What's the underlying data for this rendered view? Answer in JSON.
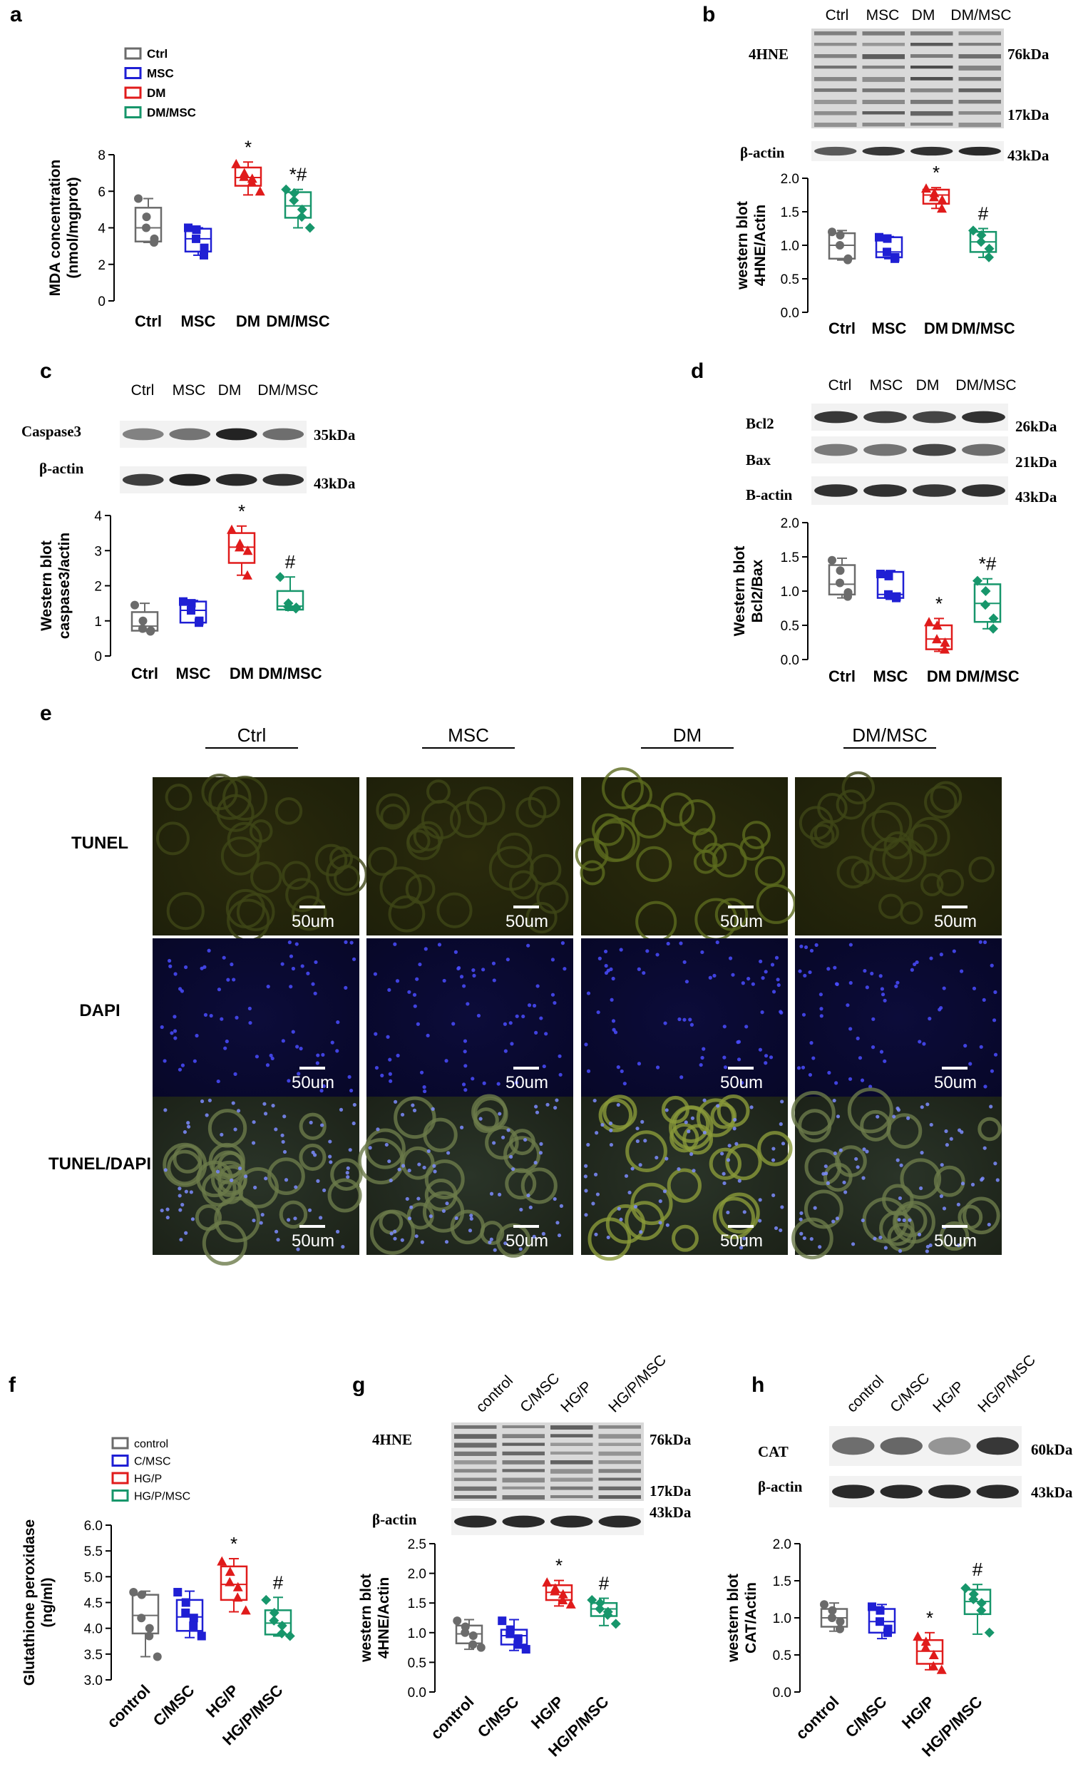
{
  "colors": {
    "ctrl": "#6b6b6b",
    "msc": "#1f1fd4",
    "dm": "#e01b1b",
    "dmmsc": "#17966b"
  },
  "chart_data": [
    {
      "id": "a",
      "panel_label": "a",
      "type": "box",
      "ylabel": [
        "MDA concentration",
        "(nmol/mgprot)"
      ],
      "ylim": [
        0,
        8
      ],
      "yticks": [
        "0",
        "2",
        "4",
        "6",
        "8"
      ],
      "categories": [
        "Ctrl",
        "MSC",
        "DM",
        "DM/MSC"
      ],
      "legend": [
        "Ctrl",
        "MSC",
        "DM",
        "DM/MSC"
      ],
      "series": [
        {
          "name": "Ctrl",
          "marker": "circle",
          "points": [
            5.6,
            4.6,
            4.0,
            3.4,
            3.2
          ],
          "box": [
            3.25,
            4.0,
            5.1
          ],
          "whisk": [
            3.2,
            5.6
          ]
        },
        {
          "name": "MSC",
          "marker": "square",
          "points": [
            4.0,
            3.9,
            3.4,
            2.9,
            2.5
          ],
          "box": [
            2.7,
            3.4,
            3.95
          ],
          "whisk": [
            2.5,
            4.0
          ]
        },
        {
          "name": "DM",
          "marker": "triangle",
          "points": [
            7.5,
            7.0,
            6.8,
            6.7,
            6.5,
            6.0
          ],
          "box": [
            6.3,
            6.75,
            7.3
          ],
          "whisk": [
            5.8,
            7.6
          ]
        },
        {
          "name": "DM/MSC",
          "marker": "diamond",
          "points": [
            6.1,
            5.9,
            5.5,
            5.0,
            4.6,
            4.0
          ],
          "box": [
            4.55,
            5.2,
            5.95
          ],
          "whisk": [
            4.0,
            6.1
          ]
        }
      ],
      "annotations": [
        "",
        "",
        "*",
        "*#"
      ]
    },
    {
      "id": "b",
      "panel_label": "b",
      "type": "box",
      "ylabel": [
        "western blot",
        "4HNE/Actin"
      ],
      "ylim": [
        0,
        2
      ],
      "yticks": [
        "0.0",
        "0.5",
        "1.0",
        "1.5",
        "2.0"
      ],
      "categories": [
        "Ctrl",
        "MSC",
        "DM",
        "DM/MSC"
      ],
      "series": [
        {
          "name": "Ctrl",
          "marker": "circle",
          "points": [
            1.2,
            1.15,
            1.0,
            0.8,
            0.78
          ],
          "box": [
            0.8,
            1.0,
            1.18
          ],
          "whisk": [
            0.78,
            1.22
          ]
        },
        {
          "name": "MSC",
          "marker": "square",
          "points": [
            1.12,
            1.1,
            0.9,
            0.82,
            0.8
          ],
          "box": [
            0.82,
            0.9,
            1.12
          ],
          "whisk": [
            0.8,
            1.13
          ]
        },
        {
          "name": "DM",
          "marker": "triangle",
          "points": [
            1.85,
            1.78,
            1.72,
            1.68,
            1.55
          ],
          "box": [
            1.62,
            1.75,
            1.83
          ],
          "whisk": [
            1.55,
            1.86
          ]
        },
        {
          "name": "DM/MSC",
          "marker": "diamond",
          "points": [
            1.22,
            1.15,
            1.05,
            0.95,
            0.82
          ],
          "box": [
            0.9,
            1.05,
            1.2
          ],
          "whisk": [
            0.82,
            1.25
          ]
        }
      ],
      "annotations": [
        "",
        "",
        "*",
        "#"
      ]
    },
    {
      "id": "c",
      "panel_label": "c",
      "type": "box",
      "ylabel": [
        "Western blot",
        "caspase3/actin"
      ],
      "ylim": [
        0,
        4
      ],
      "yticks": [
        "0",
        "1",
        "2",
        "3",
        "4"
      ],
      "categories": [
        "Ctrl",
        "MSC",
        "DM",
        "DM/MSC"
      ],
      "series": [
        {
          "name": "Ctrl",
          "marker": "circle",
          "points": [
            1.45,
            1.0,
            0.78,
            0.72,
            0.7
          ],
          "box": [
            0.72,
            0.85,
            1.25
          ],
          "whisk": [
            0.7,
            1.5
          ]
        },
        {
          "name": "MSC",
          "marker": "square",
          "points": [
            1.55,
            1.5,
            1.3,
            1.0,
            0.95
          ],
          "box": [
            0.95,
            1.3,
            1.55
          ],
          "whisk": [
            0.95,
            1.58
          ]
        },
        {
          "name": "DM",
          "marker": "triangle",
          "points": [
            3.6,
            3.2,
            3.1,
            3.0,
            2.3
          ],
          "box": [
            2.65,
            3.1,
            3.5
          ],
          "whisk": [
            2.3,
            3.7
          ]
        },
        {
          "name": "DM/MSC",
          "marker": "diamond",
          "points": [
            2.25,
            1.5,
            1.4,
            1.38,
            1.35
          ],
          "box": [
            1.32,
            1.42,
            1.85
          ],
          "whisk": [
            1.3,
            2.25
          ]
        }
      ],
      "annotations": [
        "",
        "",
        "*",
        "#"
      ]
    },
    {
      "id": "d",
      "panel_label": "d",
      "type": "box",
      "ylabel": [
        "Western blot",
        "Bcl2/Bax"
      ],
      "ylim": [
        0,
        2
      ],
      "yticks": [
        "0.0",
        "0.5",
        "1.0",
        "1.5",
        "2.0"
      ],
      "categories": [
        "Ctrl",
        "MSC",
        "DM",
        "DM/MSC"
      ],
      "series": [
        {
          "name": "Ctrl",
          "marker": "circle",
          "points": [
            1.45,
            1.3,
            1.12,
            0.98,
            0.92
          ],
          "box": [
            0.95,
            1.1,
            1.38
          ],
          "whisk": [
            0.9,
            1.48
          ]
        },
        {
          "name": "MSC",
          "marker": "square",
          "points": [
            1.25,
            1.22,
            0.95,
            0.92,
            0.9
          ],
          "box": [
            0.9,
            0.95,
            1.28
          ],
          "whisk": [
            0.88,
            1.3
          ]
        },
        {
          "name": "DM",
          "marker": "triangle",
          "points": [
            0.55,
            0.5,
            0.3,
            0.25,
            0.15
          ],
          "box": [
            0.15,
            0.3,
            0.5
          ],
          "whisk": [
            0.12,
            0.6
          ]
        },
        {
          "name": "DM/MSC",
          "marker": "diamond",
          "points": [
            1.15,
            1.0,
            0.8,
            0.6,
            0.45
          ],
          "box": [
            0.55,
            0.82,
            1.1
          ],
          "whisk": [
            0.45,
            1.18
          ]
        }
      ],
      "annotations": [
        "",
        "",
        "*",
        "*#"
      ]
    },
    {
      "id": "f",
      "panel_label": "f",
      "type": "box",
      "ylabel": [
        "Glutathione peroxidase",
        "(ng/ml)"
      ],
      "ylim": [
        3.0,
        6.0
      ],
      "yticks": [
        "3.0",
        "3.5",
        "4.0",
        "4.5",
        "5.0",
        "5.5",
        "6.0"
      ],
      "categories": [
        "control",
        "C/MSC",
        "HG/P",
        "HG/P/MSC"
      ],
      "legend": [
        "control",
        "C/MSC",
        "HG/P",
        "HG/P/MSC"
      ],
      "series": [
        {
          "name": "control",
          "marker": "circle",
          "points": [
            4.7,
            4.65,
            4.2,
            4.0,
            3.85,
            3.45
          ],
          "box": [
            3.9,
            4.25,
            4.65
          ],
          "whisk": [
            3.45,
            4.72
          ]
        },
        {
          "name": "C/MSC",
          "marker": "square",
          "points": [
            4.7,
            4.5,
            4.3,
            4.2,
            4.05,
            3.85
          ],
          "box": [
            3.95,
            4.22,
            4.55
          ],
          "whisk": [
            3.82,
            4.72
          ]
        },
        {
          "name": "HG/P",
          "marker": "triangle",
          "points": [
            5.3,
            5.1,
            4.9,
            4.8,
            4.6,
            4.35
          ],
          "box": [
            4.55,
            4.85,
            5.2
          ],
          "whisk": [
            4.32,
            5.35
          ]
        },
        {
          "name": "HG/P/MSC",
          "marker": "diamond",
          "points": [
            4.55,
            4.3,
            4.15,
            4.05,
            3.9,
            3.85
          ],
          "box": [
            3.88,
            4.1,
            4.35
          ],
          "whisk": [
            3.85,
            4.6
          ]
        }
      ],
      "annotations": [
        "",
        "",
        "*",
        "#"
      ]
    },
    {
      "id": "g",
      "panel_label": "g",
      "type": "box",
      "ylabel": [
        "western blot",
        "4HNE/Actin"
      ],
      "ylim": [
        0,
        2.5
      ],
      "yticks": [
        "0.0",
        "0.5",
        "1.0",
        "1.5",
        "2.0",
        "2.5"
      ],
      "categories": [
        "control",
        "C/MSC",
        "HG/P",
        "HG/P/MSC"
      ],
      "series": [
        {
          "name": "control",
          "marker": "circle",
          "points": [
            1.2,
            1.1,
            1.0,
            0.95,
            0.8,
            0.75
          ],
          "box": [
            0.82,
            0.98,
            1.12
          ],
          "whisk": [
            0.72,
            1.22
          ]
        },
        {
          "name": "C/MSC",
          "marker": "square",
          "points": [
            1.2,
            1.05,
            0.98,
            0.9,
            0.8,
            0.72
          ],
          "box": [
            0.8,
            0.95,
            1.05
          ],
          "whisk": [
            0.7,
            1.22
          ]
        },
        {
          "name": "HG/P",
          "marker": "triangle",
          "points": [
            1.85,
            1.75,
            1.7,
            1.65,
            1.55,
            1.48
          ],
          "box": [
            1.55,
            1.68,
            1.8
          ],
          "whisk": [
            1.45,
            1.88
          ]
        },
        {
          "name": "HG/P/MSC",
          "marker": "diamond",
          "points": [
            1.55,
            1.5,
            1.4,
            1.35,
            1.3,
            1.15
          ],
          "box": [
            1.28,
            1.4,
            1.5
          ],
          "whisk": [
            1.12,
            1.58
          ]
        }
      ],
      "annotations": [
        "",
        "",
        "*",
        "#"
      ]
    },
    {
      "id": "h",
      "panel_label": "h",
      "type": "box",
      "ylabel": [
        "western blot",
        "CAT/Actin"
      ],
      "ylim": [
        0,
        2
      ],
      "yticks": [
        "0.0",
        "0.5",
        "1.0",
        "1.5",
        "2.0"
      ],
      "categories": [
        "control",
        "C/MSC",
        "HG/P",
        "HG/P/MSC"
      ],
      "series": [
        {
          "name": "control",
          "marker": "circle",
          "points": [
            1.18,
            1.1,
            1.0,
            0.95,
            0.85
          ],
          "box": [
            0.88,
            1.0,
            1.12
          ],
          "whisk": [
            0.82,
            1.2
          ]
        },
        {
          "name": "C/MSC",
          "marker": "square",
          "points": [
            1.15,
            1.1,
            0.95,
            0.85,
            0.8
          ],
          "box": [
            0.8,
            0.95,
            1.12
          ],
          "whisk": [
            0.72,
            1.18
          ]
        },
        {
          "name": "HG/P",
          "marker": "triangle",
          "points": [
            0.75,
            0.68,
            0.6,
            0.5,
            0.35,
            0.3
          ],
          "box": [
            0.38,
            0.55,
            0.7
          ],
          "whisk": [
            0.3,
            0.8
          ]
        },
        {
          "name": "HG/P/MSC",
          "marker": "diamond",
          "points": [
            1.4,
            1.32,
            1.25,
            1.2,
            1.1,
            0.8
          ],
          "box": [
            1.05,
            1.22,
            1.38
          ],
          "whisk": [
            0.78,
            1.45
          ]
        }
      ],
      "annotations": [
        "",
        "",
        "*",
        "#"
      ]
    }
  ],
  "blots": {
    "b": {
      "columns": [
        "Ctrl",
        "MSC",
        "DM",
        "DM/MSC"
      ],
      "proteins": [
        "4HNE",
        "β-actin"
      ],
      "sizes": [
        "76kDa",
        "17kDa",
        "43kDa"
      ]
    },
    "c": {
      "columns": [
        "Ctrl",
        "MSC",
        "DM",
        "DM/MSC"
      ],
      "proteins": [
        "Caspase3",
        "β-actin"
      ],
      "sizes": [
        "35kDa",
        "43kDa"
      ]
    },
    "d": {
      "columns": [
        "Ctrl",
        "MSC",
        "DM",
        "DM/MSC"
      ],
      "proteins": [
        "Bcl2",
        "Bax",
        "B-actin"
      ],
      "sizes": [
        "26kDa",
        "21kDa",
        "43kDa"
      ]
    },
    "g": {
      "columns": [
        "control",
        "C/MSC",
        "HG/P",
        "HG/P/MSC"
      ],
      "proteins": [
        "4HNE",
        "β-actin"
      ],
      "sizes": [
        "76kDa",
        "17kDa",
        "43kDa"
      ]
    },
    "h": {
      "columns": [
        "control",
        "C/MSC",
        "HG/P",
        "HG/P/MSC"
      ],
      "proteins": [
        "CAT",
        "β-actin"
      ],
      "sizes": [
        "60kDa",
        "43kDa"
      ]
    }
  },
  "micro": {
    "panel_label": "e",
    "columns": [
      "Ctrl",
      "MSC",
      "DM",
      "DM/MSC"
    ],
    "rows": [
      "TUNEL",
      "DAPI",
      "TUNEL/DAPI"
    ],
    "scale_label": "50um"
  }
}
